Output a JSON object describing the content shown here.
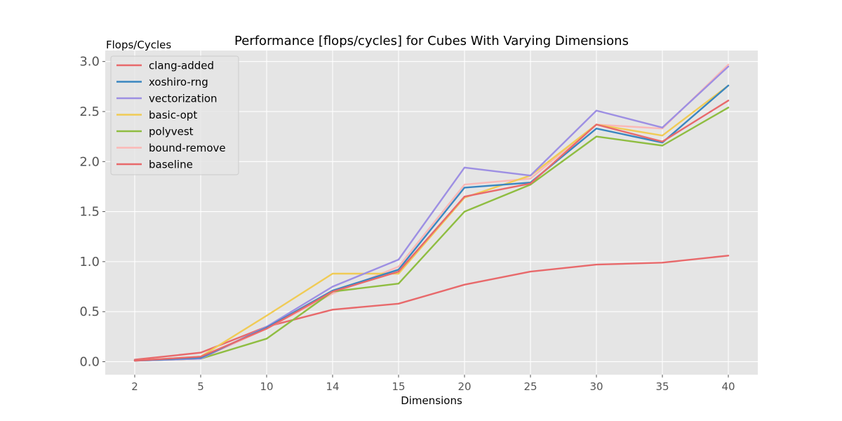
{
  "chart_data": {
    "type": "line",
    "title": "Performance [flops/cycles] for Cubes With Varying Dimensions",
    "xlabel": "Dimensions",
    "ylabel": "Flops/Cycles",
    "categories": [
      "2",
      "5",
      "10",
      "14",
      "15",
      "20",
      "25",
      "30",
      "35",
      "40"
    ],
    "yticks": [
      "0.0",
      "0.5",
      "1.0",
      "1.5",
      "2.0",
      "2.5",
      "3.0"
    ],
    "ylim": [
      -0.13,
      3.11
    ],
    "grid": true,
    "legend_position": "upper left",
    "series": [
      {
        "name": "clang-added",
        "color": "#e8696b",
        "values": [
          0.01,
          0.05,
          0.33,
          0.7,
          0.9,
          1.65,
          1.78,
          2.37,
          2.2,
          2.61
        ]
      },
      {
        "name": "xoshiro-rng",
        "color": "#3a86c0",
        "values": [
          0.01,
          0.04,
          0.34,
          0.71,
          0.92,
          1.74,
          1.79,
          2.33,
          2.19,
          2.76
        ]
      },
      {
        "name": "vectorization",
        "color": "#9d8fe3",
        "values": [
          0.01,
          0.03,
          0.35,
          0.75,
          1.02,
          1.94,
          1.86,
          2.51,
          2.34,
          2.95
        ]
      },
      {
        "name": "basic-opt",
        "color": "#f0cb55",
        "values": [
          0.01,
          0.05,
          0.46,
          0.88,
          0.88,
          1.64,
          1.86,
          2.37,
          2.26,
          2.76
        ]
      },
      {
        "name": "polyvest",
        "color": "#8fbd41",
        "values": [
          0.01,
          0.03,
          0.23,
          0.7,
          0.78,
          1.5,
          1.77,
          2.25,
          2.16,
          2.54
        ]
      },
      {
        "name": "bound-remove",
        "color": "#fbb8b6",
        "values": [
          0.01,
          0.03,
          0.33,
          0.68,
          0.95,
          1.77,
          1.83,
          2.37,
          2.33,
          2.97
        ]
      },
      {
        "name": "baseline",
        "color": "#e8696b",
        "values": [
          0.02,
          0.09,
          0.35,
          0.52,
          0.58,
          0.77,
          0.9,
          0.97,
          0.99,
          1.06
        ]
      }
    ]
  }
}
